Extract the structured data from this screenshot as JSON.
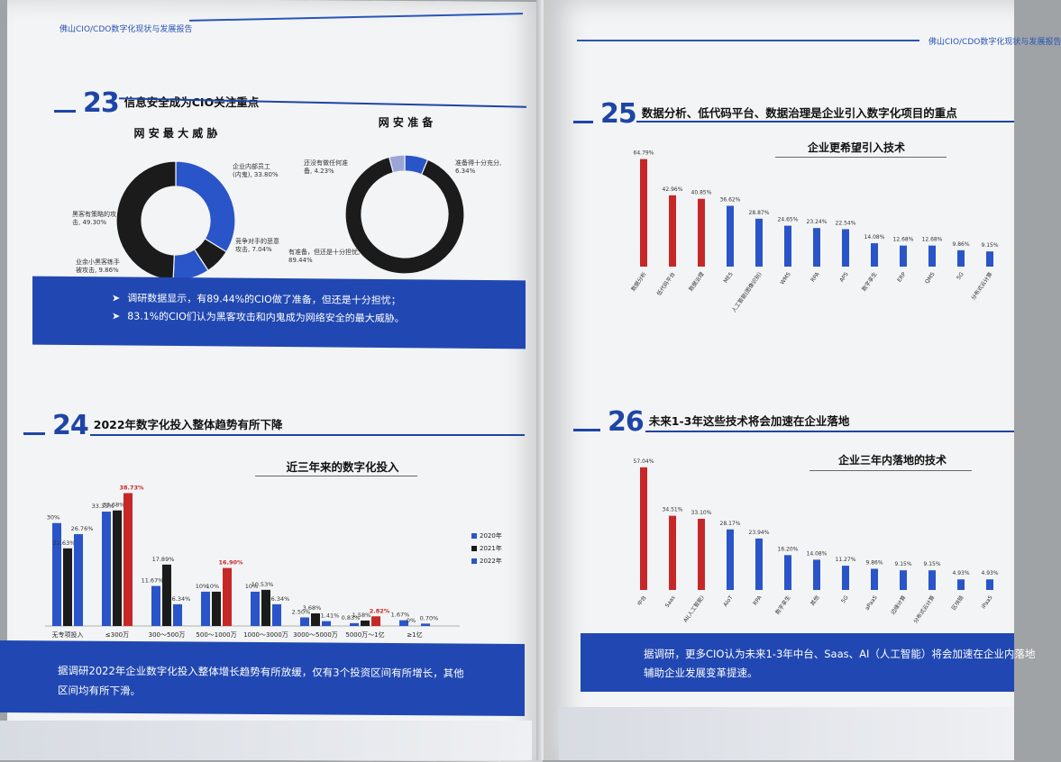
{
  "colors": {
    "blue": "#2a55c8",
    "black": "#1b1b1b",
    "red": "#c62828",
    "banner": "#2148b2"
  },
  "left_header": "佛山CIO/CDO数字化现状与发展报告",
  "right_header": "佛山CIO/CDO数字化现状与发展报告",
  "s23": {
    "num": "23",
    "title": "信息安全成为CIO关注重点",
    "donut1_title": "网 安 最 大 威 胁",
    "donut2_title": "网 安 准 备",
    "bullet1": "调研数据显示，有89.44%的CIO做了准备，但还是十分担忧；",
    "bullet2": "83.1%的CIO们认为黑客攻击和内鬼成为网络安全的最大威胁。"
  },
  "s24": {
    "num": "24",
    "title": "2022年数字化投入整体趋势有所下降",
    "chart_title": "近三年来的数字化投入",
    "banner_line1": "据调研2022年企业数字化投入整体增长趋势有所放缓，仅有3个投资区间有所增长，其他",
    "banner_line2": "区间均有所下滑。"
  },
  "s25": {
    "num": "25",
    "title": "数据分析、低代码平台、数据治理是企业引入数字化项目的重点",
    "chart_title": "企业更希望引入技术"
  },
  "s26": {
    "num": "26",
    "title": "未来1-3年这些技术将会加速在企业落地",
    "chart_title": "企业三年内落地的技术",
    "banner_line1": "据调研，更多CIO认为未来1-3年中台、Saas、AI（人工智能）将会加速在企业内落地",
    "banner_line2": "辅助企业发展变革提速。"
  },
  "chart_data": [
    {
      "type": "pie",
      "title": "网 安 最 大 威 胁",
      "slices": [
        {
          "label": "企业内部员工\n(内鬼), 33.80%",
          "value": 33.8,
          "color": "#2a55c8"
        },
        {
          "label": "竞争对手的恶意\n攻击, 7.04%",
          "value": 7.04,
          "color": "#1b1b1b"
        },
        {
          "label": "业余小黑客练手\n被攻击, 9.86%",
          "value": 9.86,
          "color": "#2a55c8"
        },
        {
          "label": "黑客有策略的攻\n击, 49.30%",
          "value": 49.3,
          "color": "#1b1b1b"
        }
      ]
    },
    {
      "type": "pie",
      "title": "网 安 准 备",
      "slices": [
        {
          "label": "准备得十分充分,\n6.34%",
          "value": 6.34,
          "color": "#2a55c8"
        },
        {
          "label": "有准备，但还是十分担忧,\n89.44%",
          "value": 89.44,
          "color": "#1b1b1b"
        },
        {
          "label": "还没有做任何准\n备, 4.23%",
          "value": 4.23,
          "color": "#9aa6d6"
        }
      ]
    },
    {
      "type": "bar",
      "title": "近三年来的数字化投入",
      "categories": [
        "无专项投入",
        "≤300万",
        "300～500万",
        "500～1000万",
        "1000～3000万",
        "3000～5000万",
        "5000万～1亿",
        "≥1亿"
      ],
      "series": [
        {
          "name": "2020年",
          "color": "#2a55c8",
          "values": [
            30,
            33.33,
            11.67,
            10,
            10,
            2.5,
            0.83,
            1.67
          ],
          "labels": [
            "30%",
            "33.33%",
            "11.67%",
            "10%",
            "10%",
            "2.50%",
            "0.83%",
            "1.67%"
          ]
        },
        {
          "name": "2021年",
          "color": "#1b1b1b",
          "values": [
            22.63,
            33.68,
            17.89,
            10,
            10.53,
            3.68,
            1.58,
            0
          ],
          "labels": [
            "22.63%",
            "33.68%",
            "17.89%",
            "10%",
            "10.53%",
            "3.68%",
            "1.58%",
            "0%"
          ]
        },
        {
          "name": "2022年",
          "color": "#2a55c8",
          "values": [
            26.76,
            38.73,
            6.34,
            16.9,
            6.34,
            1.41,
            2.82,
            0.7
          ],
          "labels": [
            "26.76%",
            "38.73%",
            "6.34%",
            "16.90%",
            "6.34%",
            "1.41%",
            "2.82%",
            "0.70%"
          ],
          "highlight": [
            1,
            3,
            6
          ]
        }
      ],
      "highlight_color": "#c62828",
      "ylim": [
        0,
        42
      ]
    },
    {
      "type": "bar",
      "title": "企业更希望引入技术",
      "categories": [
        "数据分析",
        "低代码平台",
        "数据治理",
        "MES",
        "人工智能(图像识别)",
        "WMS",
        "RPA",
        "APS",
        "数字孪生",
        "ERP",
        "QMS",
        "5G",
        "分布式云计算"
      ],
      "values": [
        64.79,
        42.96,
        40.85,
        36.62,
        28.87,
        24.65,
        23.24,
        22.54,
        14.08,
        12.68,
        12.68,
        9.86,
        9.15
      ],
      "labels": [
        "64.79%",
        "42.96%",
        "40.85%",
        "36.62%",
        "28.87%",
        "24.65%",
        "23.24%",
        "22.54%",
        "14.08%",
        "12.68%",
        "12.68%",
        "9.86%",
        "9.15%"
      ],
      "colors": [
        "#c62828",
        "#c62828",
        "#c62828",
        "#2a55c8",
        "#2a55c8",
        "#2a55c8",
        "#2a55c8",
        "#2a55c8",
        "#2a55c8",
        "#2a55c8",
        "#2a55c8",
        "#2a55c8",
        "#2a55c8"
      ],
      "ylim": [
        0,
        70
      ]
    },
    {
      "type": "bar",
      "title": "企业三年内落地的技术",
      "categories": [
        "中台",
        "Saas",
        "AI(人工智能)",
        "AIoT",
        "RPA",
        "数字孪生",
        "其他",
        "5G",
        "aPaaS",
        "边缘计算",
        "分布式云计算",
        "区块链",
        "iPaaS"
      ],
      "values": [
        57.04,
        34.51,
        33.1,
        28.17,
        23.94,
        16.2,
        14.08,
        11.27,
        9.86,
        9.15,
        9.15,
        4.93,
        4.93
      ],
      "labels": [
        "57.04%",
        "34.51%",
        "33.10%",
        "28.17%",
        "23.94%",
        "16.20%",
        "14.08%",
        "11.27%",
        "9.86%",
        "9.15%",
        "9.15%",
        "4.93%",
        "4.93%"
      ],
      "colors": [
        "#c62828",
        "#c62828",
        "#c62828",
        "#2a55c8",
        "#2a55c8",
        "#2a55c8",
        "#2a55c8",
        "#2a55c8",
        "#2a55c8",
        "#2a55c8",
        "#2a55c8",
        "#2a55c8",
        "#2a55c8"
      ],
      "ylim": [
        0,
        62
      ]
    }
  ]
}
